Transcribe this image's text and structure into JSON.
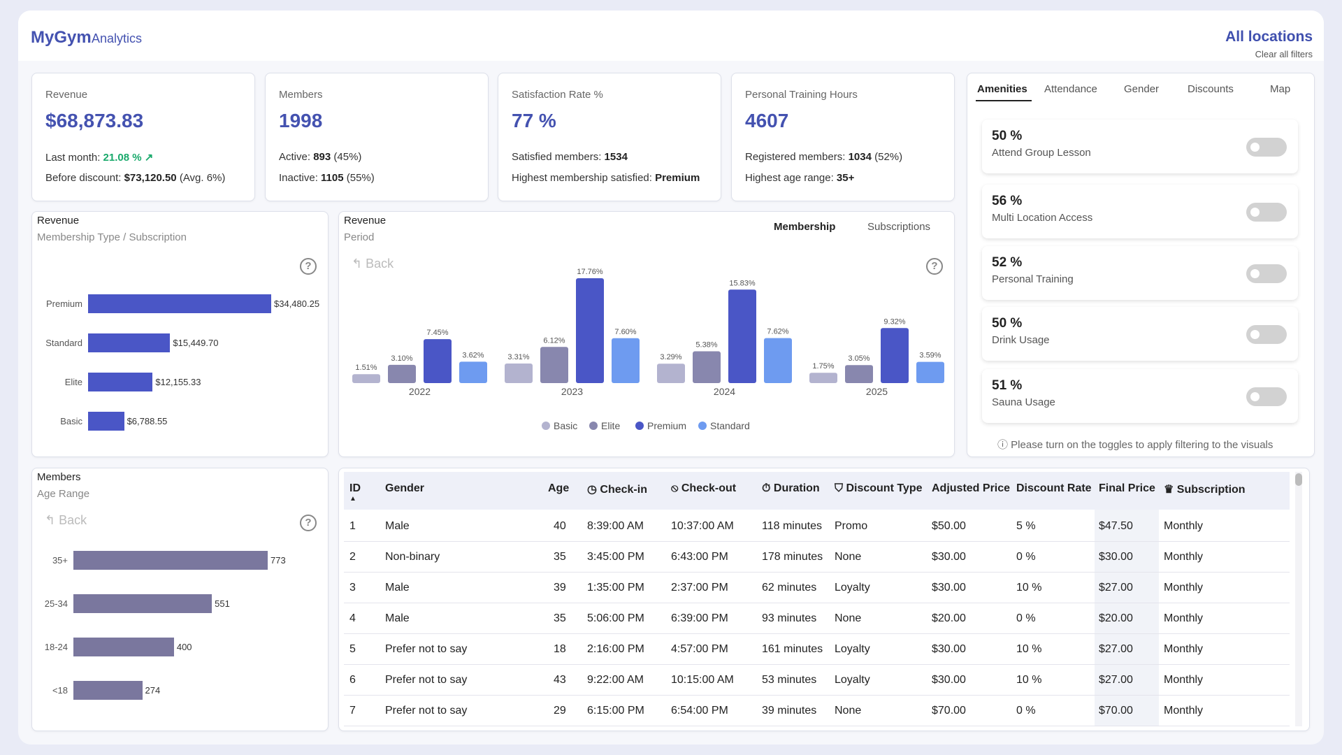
{
  "header": {
    "brand": "MyGym",
    "brand_sub": "Analytics",
    "location": "All locations",
    "clear_filters": "Clear all filters"
  },
  "kpis": [
    {
      "label": "Revenue",
      "value": "$68,873.83",
      "line1_prefix": "Last month: ",
      "line1_value": "21.08 % ↗",
      "line2_prefix": "Before discount: ",
      "line2_value": "$73,120.50",
      "line2_suffix": " (Avg. 6%)"
    },
    {
      "label": "Members",
      "value": "1998",
      "line1_prefix": "Active: ",
      "line1_value": "893",
      "line1_suffix": " (45%)",
      "line2_prefix": "Inactive: ",
      "line2_value": "1105",
      "line2_suffix": " (55%)"
    },
    {
      "label": "Satisfaction Rate %",
      "value": "77 %",
      "line1_prefix": "Satisfied members: ",
      "line1_value": "1534",
      "line2_prefix": "Highest membership satisfied: ",
      "line2_value": "Premium"
    },
    {
      "label": "Personal Training Hours",
      "value": "4607",
      "line1_prefix": "Registered members: ",
      "line1_value": "1034",
      "line1_suffix": " (52%)",
      "line2_prefix": "Highest age range: ",
      "line2_value": "35+"
    }
  ],
  "rev_membership": {
    "title": "Revenue",
    "subtitle": "Membership Type / Subscription",
    "help": "?",
    "bar_color": "#4a56c6",
    "chart_data": {
      "type": "bar",
      "orientation": "horizontal",
      "categories": [
        "Premium",
        "Standard",
        "Elite",
        "Basic"
      ],
      "values": [
        34480.25,
        15449.7,
        12155.33,
        6788.55
      ],
      "value_labels": [
        "$34,480.25",
        "$15,449.70",
        "$12,155.33",
        "$6,788.55"
      ]
    }
  },
  "rev_period": {
    "title": "Revenue",
    "subtitle": "Period",
    "back": "Back",
    "help": "?",
    "toggle_membership": "Membership",
    "toggle_subscriptions": "Subscriptions",
    "chart_data": {
      "type": "bar",
      "categories": [
        "2022",
        "2023",
        "2024",
        "2025"
      ],
      "series": [
        {
          "name": "Basic",
          "color": "#b3b3cf",
          "values": [
            1.51,
            3.31,
            3.29,
            1.75
          ],
          "labels": [
            "1.51%",
            "3.31%",
            "3.29%",
            "1.75%"
          ]
        },
        {
          "name": "Elite",
          "color": "#8887ae",
          "values": [
            3.1,
            6.12,
            5.38,
            3.05
          ],
          "labels": [
            "3.10%",
            "6.12%",
            "5.38%",
            "3.05%"
          ]
        },
        {
          "name": "Premium",
          "color": "#4a56c6",
          "values": [
            7.45,
            17.76,
            15.83,
            9.32
          ],
          "labels": [
            "7.45%",
            "17.76%",
            "15.83%",
            "9.32%"
          ]
        },
        {
          "name": "Standard",
          "color": "#6e9bf0",
          "values": [
            3.62,
            7.6,
            7.62,
            3.59
          ],
          "labels": [
            "3.62%",
            "7.60%",
            "7.62%",
            "3.59%"
          ]
        }
      ]
    }
  },
  "age_range": {
    "title": "Members",
    "subtitle": "Age Range",
    "back": "Back",
    "help": "?",
    "bar_color": "#7a779e",
    "chart_data": {
      "type": "bar",
      "orientation": "horizontal",
      "categories": [
        "35+",
        "25-34",
        "18-24",
        "<18"
      ],
      "values": [
        773,
        551,
        400,
        274
      ],
      "value_labels": [
        "773",
        "551",
        "400",
        "274"
      ]
    }
  },
  "amenities": {
    "tabs": [
      "Amenities",
      "Attendance",
      "Gender",
      "Discounts",
      "Map"
    ],
    "items": [
      {
        "pct": "50 %",
        "label": "Attend Group Lesson"
      },
      {
        "pct": "56 %",
        "label": "Multi Location Access"
      },
      {
        "pct": "52 %",
        "label": "Personal Training"
      },
      {
        "pct": "50 %",
        "label": "Drink Usage"
      },
      {
        "pct": "51 %",
        "label": "Sauna Usage"
      }
    ],
    "note": "ⓘ Please turn on the toggles to apply filtering to the visuals"
  },
  "table": {
    "headers": [
      "ID",
      "Gender",
      "Age",
      "◷ Check-in",
      "⦸ Check-out",
      "⏱ Duration",
      "⛉ Discount Type",
      "Adjusted Price",
      "Discount Rate",
      "Final Price",
      "♛ Subscription"
    ],
    "sort_indicator": "▲",
    "rows": [
      [
        "1",
        "Male",
        "40",
        "8:39:00 AM",
        "10:37:00 AM",
        "118 minutes",
        "Promo",
        "$50.00",
        "5 %",
        "$47.50",
        "Monthly"
      ],
      [
        "2",
        "Non-binary",
        "35",
        "3:45:00 PM",
        "6:43:00 PM",
        "178 minutes",
        "None",
        "$30.00",
        "0 %",
        "$30.00",
        "Monthly"
      ],
      [
        "3",
        "Male",
        "39",
        "1:35:00 PM",
        "2:37:00 PM",
        "62 minutes",
        "Loyalty",
        "$30.00",
        "10 %",
        "$27.00",
        "Monthly"
      ],
      [
        "4",
        "Male",
        "35",
        "5:06:00 PM",
        "6:39:00 PM",
        "93 minutes",
        "None",
        "$20.00",
        "0 %",
        "$20.00",
        "Monthly"
      ],
      [
        "5",
        "Prefer not to say",
        "18",
        "2:16:00 PM",
        "4:57:00 PM",
        "161 minutes",
        "Loyalty",
        "$30.00",
        "10 %",
        "$27.00",
        "Monthly"
      ],
      [
        "6",
        "Prefer not to say",
        "43",
        "9:22:00 AM",
        "10:15:00 AM",
        "53 minutes",
        "Loyalty",
        "$30.00",
        "10 %",
        "$27.00",
        "Monthly"
      ],
      [
        "7",
        "Prefer not to say",
        "29",
        "6:15:00 PM",
        "6:54:00 PM",
        "39 minutes",
        "None",
        "$70.00",
        "0 %",
        "$70.00",
        "Monthly"
      ]
    ]
  }
}
